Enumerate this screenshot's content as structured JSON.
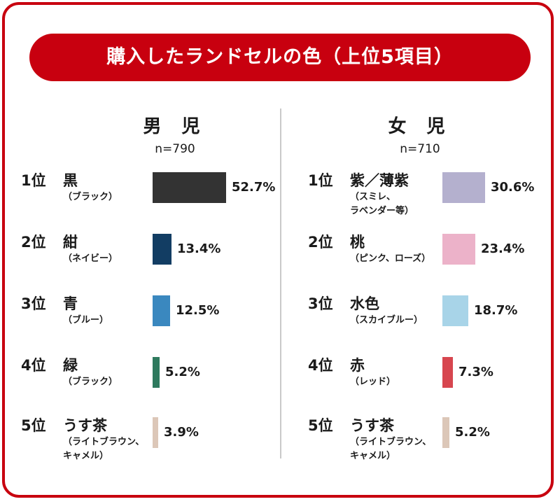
{
  "title": "購入したランドセルの色（上位5項目）",
  "chart_data": [
    {
      "type": "bar",
      "orientation": "horizontal",
      "title": "男 児",
      "subtitle": "n=790",
      "unit": "%",
      "categories": [
        {
          "rank": "1位",
          "name": "黒",
          "sub": "（ブラック）",
          "value": 52.7,
          "label": "52.7%",
          "color": "#333333"
        },
        {
          "rank": "2位",
          "name": "紺",
          "sub": "（ネイビー）",
          "value": 13.4,
          "label": "13.4%",
          "color": "#123d63"
        },
        {
          "rank": "3位",
          "name": "青",
          "sub": "（ブルー）",
          "value": 12.5,
          "label": "12.5%",
          "color": "#3a88bf"
        },
        {
          "rank": "4位",
          "name": "緑",
          "sub": "（ブラック）",
          "value": 5.2,
          "label": "5.2%",
          "color": "#2e7a5e"
        },
        {
          "rank": "5位",
          "name": "うす茶",
          "sub": "（ライトブラウン、\nキャメル）",
          "value": 3.9,
          "label": "3.9%",
          "color": "#dcc7b8"
        }
      ]
    },
    {
      "type": "bar",
      "orientation": "horizontal",
      "title": "女 児",
      "subtitle": "n=710",
      "unit": "%",
      "categories": [
        {
          "rank": "1位",
          "name": "紫／薄紫",
          "sub": "（スミレ、\nラベンダー等）",
          "value": 30.6,
          "label": "30.6%",
          "color": "#b4b0ce"
        },
        {
          "rank": "2位",
          "name": "桃",
          "sub": "（ピンク、ローズ）",
          "value": 23.4,
          "label": "23.4%",
          "color": "#ecb2c9"
        },
        {
          "rank": "3位",
          "name": "水色",
          "sub": "（スカイブルー）",
          "value": 18.7,
          "label": "18.7%",
          "color": "#a8d4e8"
        },
        {
          "rank": "4位",
          "name": "赤",
          "sub": "（レッド）",
          "value": 7.3,
          "label": "7.3%",
          "color": "#d7464f"
        },
        {
          "rank": "5位",
          "name": "うす茶",
          "sub": "（ライトブラウン、\nキャメル）",
          "value": 5.2,
          "label": "5.2%",
          "color": "#dcc7b8"
        }
      ]
    }
  ]
}
